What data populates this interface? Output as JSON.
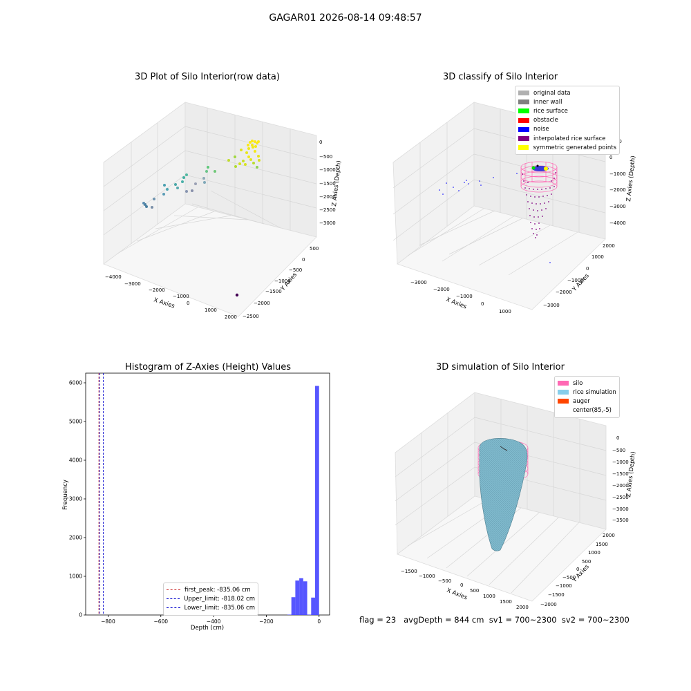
{
  "suptitle": "GAGAR01 2026-08-14 09:48:57",
  "panel1": {
    "title": "3D Plot of Silo Interior(row data)",
    "xlabel": "X Axies",
    "ylabel": "Y Axies",
    "zlabel": "Z Axies (Depth)",
    "xticks": [
      "−4000",
      "−3000",
      "−2000",
      "−1000",
      "0",
      "1000",
      "2000"
    ],
    "yticks": [
      "500",
      "0",
      "−500",
      "−1000",
      "−1500",
      "−2000",
      "−2500"
    ],
    "zticks": [
      "0",
      "−500",
      "−1000",
      "−1500",
      "−2000",
      "−2500",
      "−3000"
    ]
  },
  "panel2": {
    "title": "3D classify of Silo Interior",
    "xlabel": "X Axies",
    "ylabel": "Y Axies",
    "zlabel": "Z Axies (Depth)",
    "xticks": [
      "−3000",
      "−2000",
      "−1000",
      "0",
      "1000"
    ],
    "yticks": [
      "2000",
      "1000",
      "0",
      "−1000",
      "−2000",
      "−3000"
    ],
    "zticks": [
      "1000",
      "0",
      "−1000",
      "−2000",
      "−3000",
      "−4000"
    ],
    "legend": [
      {
        "label": "original data",
        "color": "#b0b0b0"
      },
      {
        "label": "inner wall",
        "color": "#808080"
      },
      {
        "label": "rice surface",
        "color": "#00ff00"
      },
      {
        "label": "obstacle",
        "color": "#ff0000"
      },
      {
        "label": "noise",
        "color": "#0000ff"
      },
      {
        "label": "interpolated rice surface",
        "color": "#800080"
      },
      {
        "label": "symmetric generated points",
        "color": "#ffff00"
      }
    ]
  },
  "panel4": {
    "title": "3D simulation of Silo Interior",
    "xlabel": "X Axies",
    "ylabel": "Y Axies",
    "zlabel": "Z Axies (Depth)",
    "xticks": [
      "−1500",
      "−1000",
      "−500",
      "0",
      "500",
      "1000",
      "1500",
      "2000"
    ],
    "yticks": [
      "2000",
      "1500",
      "1000",
      "500",
      "0",
      "−500",
      "−1000",
      "−1500",
      "−2000"
    ],
    "zticks": [
      "0",
      "−500",
      "−1000",
      "−1500",
      "−2000",
      "−2500",
      "−3000",
      "−3500"
    ],
    "legend": [
      {
        "label": "silo",
        "color": "#ff69b4"
      },
      {
        "label": "rice simulation",
        "color": "#87ceeb"
      },
      {
        "label": "auger",
        "color": "#ff4500"
      },
      {
        "label": "center(85,-5)",
        "color": "#ffffff"
      }
    ]
  },
  "bottom_text": "flag = 23   avgDepth = 844 cm  sv1 = 700~2300  sv2 = 700~2300",
  "chart_data": [
    {
      "type": "scatter",
      "title": "3D Plot of Silo Interior(row data)",
      "xlabel": "X Axies",
      "ylabel": "Y Axies",
      "zlabel": "Z Axies (Depth)",
      "xlim": [
        -4000,
        2000
      ],
      "ylim": [
        -2500,
        500
      ],
      "zlim": [
        -3000,
        0
      ]
    },
    {
      "type": "scatter",
      "title": "3D classify of Silo Interior",
      "xlabel": "X Axies",
      "ylabel": "Y Axies",
      "zlabel": "Z Axies (Depth)",
      "xlim": [
        -3000,
        1000
      ],
      "ylim": [
        -3000,
        2000
      ],
      "zlim": [
        -4000,
        1000
      ],
      "series": [
        {
          "name": "original data"
        },
        {
          "name": "inner wall"
        },
        {
          "name": "rice surface"
        },
        {
          "name": "obstacle"
        },
        {
          "name": "noise"
        },
        {
          "name": "interpolated rice surface"
        },
        {
          "name": "symmetric generated points"
        }
      ]
    },
    {
      "type": "bar",
      "title": "Histogram of Z-Axies (Height) Values",
      "xlabel": "Depth (cm)",
      "ylabel": "Frequency",
      "xlim": [
        -885,
        40
      ],
      "ylim": [
        0,
        6250
      ],
      "xticks": [
        -800,
        -600,
        -400,
        -200,
        0
      ],
      "yticks": [
        0,
        1000,
        2000,
        3000,
        4000,
        5000,
        6000
      ],
      "bins": [
        {
          "x0": -120,
          "x1": -105,
          "value": 10
        },
        {
          "x0": -105,
          "x1": -90,
          "value": 460
        },
        {
          "x0": -90,
          "x1": -75,
          "value": 890
        },
        {
          "x0": -75,
          "x1": -60,
          "value": 950
        },
        {
          "x0": -60,
          "x1": -45,
          "value": 870
        },
        {
          "x0": -45,
          "x1": -30,
          "value": 10
        },
        {
          "x0": -30,
          "x1": -15,
          "value": 450
        },
        {
          "x0": -15,
          "x1": 0,
          "value": 5920
        }
      ],
      "bar_color": "#4d4dff",
      "vlines": [
        {
          "label": "first_peak: -835.06 cm",
          "x": -835.06,
          "color": "#cc3333"
        },
        {
          "label": "Upper_limit: -818.02 cm",
          "x": -818.02,
          "color": "#0000cc"
        },
        {
          "label": "Lower_limit: -835.06 cm",
          "x": -835.06,
          "color": "#0000cc"
        }
      ]
    },
    {
      "type": "area",
      "title": "3D simulation of Silo Interior",
      "xlabel": "X Axies",
      "ylabel": "Y Axies",
      "zlabel": "Z Axies (Depth)",
      "xlim": [
        -1500,
        2000
      ],
      "ylim": [
        -2000,
        2000
      ],
      "zlim": [
        -3500,
        0
      ],
      "series": [
        {
          "name": "silo"
        },
        {
          "name": "rice simulation"
        },
        {
          "name": "auger"
        },
        {
          "name": "center(85,-5)"
        }
      ]
    }
  ]
}
